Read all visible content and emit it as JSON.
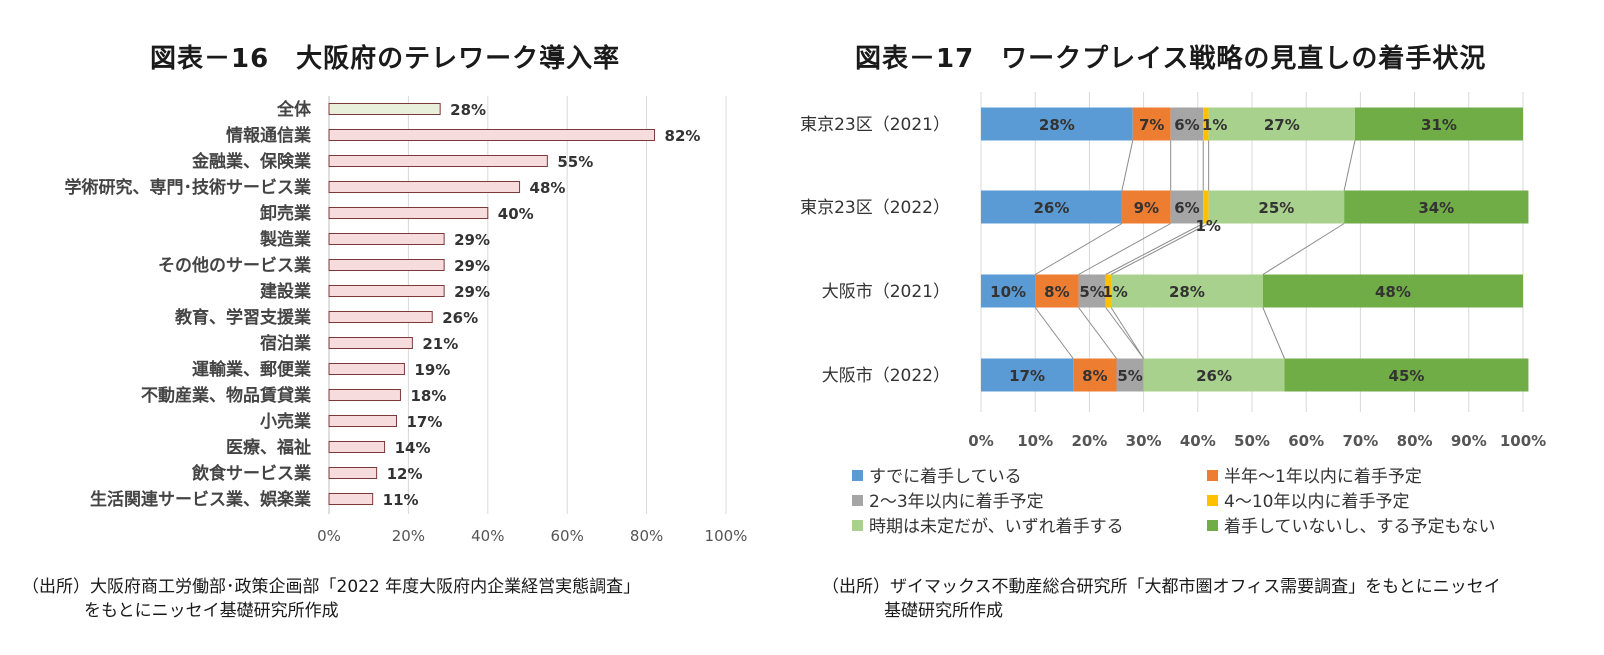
{
  "left": {
    "title": "図表－16　大阪府のテレワーク導入率",
    "source_line1": "（出所）大阪府商工労働部･政策企画部「2022 年度大阪府内企業経営実態調査」",
    "source_line2": "をもとにニッセイ基礎研究所作成"
  },
  "right": {
    "title": "図表－17　ワークプレイス戦略の見直しの着手状況",
    "source_line1": "（出所）ザイマックス不動産総合研究所「大都市圏オフィス需要調査」をもとにニッセイ",
    "source_line2": "基礎研究所作成"
  },
  "chart_data": [
    {
      "type": "bar",
      "orientation": "horizontal",
      "title": "図表－16　大阪府のテレワーク導入率",
      "categories": [
        "全体",
        "情報通信業",
        "金融業、保険業",
        "学術研究、専門･技術サービス業",
        "卸売業",
        "製造業",
        "その他のサービス業",
        "建設業",
        "教育、学習支援業",
        "宿泊業",
        "運輸業、郵便業",
        "不動産業、物品賃貸業",
        "小売業",
        "医療、福祉",
        "飲食サービス業",
        "生活関連サービス業、娯楽業"
      ],
      "values": [
        28,
        82,
        55,
        48,
        40,
        29,
        29,
        29,
        26,
        21,
        19,
        18,
        17,
        14,
        12,
        11
      ],
      "value_labels": [
        "28%",
        "82%",
        "55%",
        "48%",
        "40%",
        "29%",
        "29%",
        "29%",
        "26%",
        "21%",
        "19%",
        "18%",
        "17%",
        "14%",
        "12%",
        "11%"
      ],
      "xlim": [
        0,
        100
      ],
      "x_ticks": [
        "0%",
        "20%",
        "40%",
        "60%",
        "80%",
        "100%"
      ],
      "grid": true,
      "colors": {
        "highlight": "#e8f0dc",
        "bar": "#f6dcdc",
        "border": "#7a3a3a"
      }
    },
    {
      "type": "bar",
      "orientation": "horizontal",
      "stacked": "100%",
      "title": "図表－17　ワークプレイス戦略の見直しの着手状況",
      "categories": [
        "東京23区（2021）",
        "東京23区（2022）",
        "大阪市（2021）",
        "大阪市（2022）"
      ],
      "series": [
        {
          "name": "すでに着手している",
          "color": "#5b9bd5",
          "values": [
            28,
            26,
            10,
            17
          ],
          "labels": [
            "28%",
            "26%",
            "10%",
            "17%"
          ]
        },
        {
          "name": "半年～1年以内に着手予定",
          "color": "#ed7d31",
          "values": [
            7,
            9,
            8,
            8
          ],
          "labels": [
            "7%",
            "9%",
            "8%",
            "8%"
          ]
        },
        {
          "name": "2～3年以内に着手予定",
          "color": "#a5a5a5",
          "values": [
            6,
            6,
            5,
            5
          ],
          "labels": [
            "6%",
            "6%",
            "5%",
            "5%"
          ]
        },
        {
          "name": "4～10年以内に着手予定",
          "color": "#ffc000",
          "values": [
            1,
            1,
            1,
            0
          ],
          "labels": [
            "1%",
            "1%",
            "1%",
            ""
          ]
        },
        {
          "name": "時期は未定だが、いずれ着手する",
          "color": "#a9d18e",
          "values": [
            27,
            25,
            28,
            26
          ],
          "labels": [
            "27%",
            "25%",
            "28%",
            "26%"
          ]
        },
        {
          "name": "着手していないし、する予定もない",
          "color": "#70ad47",
          "values": [
            31,
            34,
            48,
            45
          ],
          "labels": [
            "31%",
            "34%",
            "48%",
            "45%"
          ]
        }
      ],
      "xlim": [
        0,
        100
      ],
      "x_ticks": [
        "0%",
        "10%",
        "20%",
        "30%",
        "40%",
        "50%",
        "60%",
        "70%",
        "80%",
        "90%",
        "100%"
      ],
      "grid": true,
      "series_lines": true,
      "legend_position": "bottom"
    }
  ]
}
